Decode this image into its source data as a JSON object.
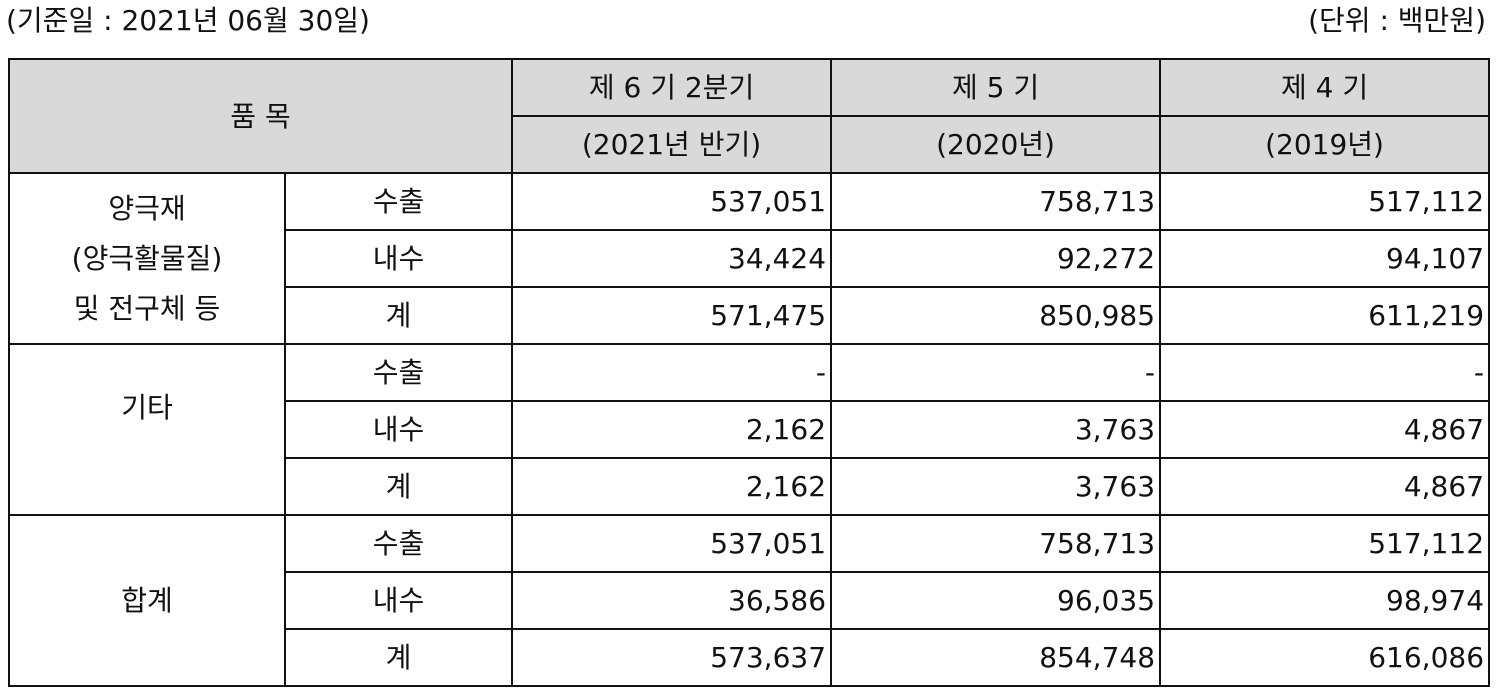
{
  "header": {
    "base_date": "(기준일 : 2021년 06월 30일)",
    "unit": "(단위 : 백만원)"
  },
  "table": {
    "item_header": "품   목",
    "columns": [
      {
        "period": "제 6 기 2분기",
        "year": "(2021년 반기)"
      },
      {
        "period": "제 5 기",
        "year": "(2020년)"
      },
      {
        "period": "제 4 기",
        "year": "(2019년)"
      }
    ],
    "groups": [
      {
        "name_lines": [
          "양극재",
          "(양극활물질)",
          "및 전구체 등"
        ],
        "rows": [
          {
            "sub": "수출",
            "values": [
              "537,051",
              "758,713",
              "517,112"
            ]
          },
          {
            "sub": "내수",
            "values": [
              "34,424",
              "92,272",
              "94,107"
            ]
          },
          {
            "sub": "계",
            "values": [
              "571,475",
              "850,985",
              "611,219"
            ]
          }
        ]
      },
      {
        "name_lines": [
          "기타"
        ],
        "rows": [
          {
            "sub": "수출",
            "values": [
              "-",
              "-",
              "-"
            ]
          },
          {
            "sub": "내수",
            "values": [
              "2,162",
              "3,763",
              "4,867"
            ]
          },
          {
            "sub": "계",
            "values": [
              "2,162",
              "3,763",
              "4,867"
            ]
          }
        ]
      },
      {
        "name_lines": [
          "합계"
        ],
        "rows": [
          {
            "sub": "수출",
            "values": [
              "537,051",
              "758,713",
              "517,112"
            ]
          },
          {
            "sub": "내수",
            "values": [
              "36,586",
              "96,035",
              "98,974"
            ]
          },
          {
            "sub": "계",
            "values": [
              "573,637",
              "854,748",
              "616,086"
            ]
          }
        ]
      }
    ]
  }
}
